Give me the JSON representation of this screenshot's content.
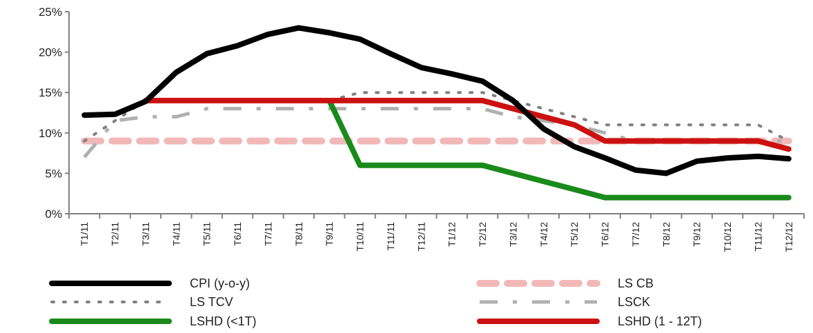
{
  "chart_data": {
    "type": "line",
    "title": "",
    "xlabel": "",
    "ylabel": "",
    "ylim": [
      0,
      25
    ],
    "yticks": [
      {
        "value": 0,
        "label": "0%"
      },
      {
        "value": 5,
        "label": "5%"
      },
      {
        "value": 10,
        "label": "10%"
      },
      {
        "value": 15,
        "label": "15%"
      },
      {
        "value": 20,
        "label": "20%"
      },
      {
        "value": 25,
        "label": "25%"
      }
    ],
    "categories": [
      "T1/11",
      "T2/11",
      "T3/11",
      "T4/11",
      "T5/11",
      "T6/11",
      "T7/11",
      "T8/11",
      "T9/11",
      "T10/11",
      "T11/11",
      "T12/11",
      "T1/12",
      "T2/12",
      "T3/12",
      "T4/12",
      "T5/12",
      "T6/12",
      "T7/12",
      "T8/12",
      "T9/12",
      "T10/12",
      "T11/12",
      "T12/12"
    ],
    "grid": false,
    "legend_position": "bottom",
    "series": [
      {
        "name": "CPI (y-o-y)",
        "style": "solid-thick",
        "color": "#000000",
        "values": [
          12.2,
          12.3,
          13.9,
          17.5,
          19.8,
          20.8,
          22.2,
          23.0,
          22.4,
          21.6,
          19.8,
          18.1,
          17.3,
          16.4,
          14.0,
          10.5,
          8.3,
          6.9,
          5.4,
          5.0,
          6.5,
          6.9,
          7.1,
          6.8
        ]
      },
      {
        "name": "LS TCV",
        "style": "dotted",
        "color": "#808080",
        "values": [
          9.0,
          11.5,
          14.0,
          14.0,
          14.0,
          14.0,
          14.0,
          14.0,
          14.0,
          15.0,
          15.0,
          15.0,
          15.0,
          15.0,
          14.0,
          13.0,
          12.0,
          11.0,
          11.0,
          11.0,
          11.0,
          11.0,
          11.0,
          9.0
        ]
      },
      {
        "name": "LS CB",
        "style": "dashed-thick",
        "color": "#f2b8b8",
        "values": [
          9.0,
          9.0,
          9.0,
          9.0,
          9.0,
          9.0,
          9.0,
          9.0,
          9.0,
          9.0,
          9.0,
          9.0,
          9.0,
          9.0,
          9.0,
          9.0,
          9.0,
          9.0,
          9.0,
          9.0,
          9.0,
          9.0,
          9.0,
          9.0
        ]
      },
      {
        "name": "LSCK",
        "style": "dash-dot",
        "color": "#b0b0b0",
        "values": [
          7.0,
          11.5,
          12.0,
          12.0,
          13.0,
          13.0,
          13.0,
          13.0,
          13.0,
          13.0,
          13.0,
          13.0,
          13.0,
          13.0,
          12.0,
          11.5,
          11.0,
          10.0,
          9.0,
          9.0,
          9.0,
          9.0,
          9.0,
          9.0
        ]
      },
      {
        "name": "LSHD (<1T)",
        "style": "solid-thick",
        "color": "#1a8a1a",
        "values": [
          null,
          null,
          null,
          null,
          null,
          null,
          null,
          null,
          14.0,
          6.0,
          6.0,
          6.0,
          6.0,
          6.0,
          5.0,
          4.0,
          3.0,
          2.0,
          2.0,
          2.0,
          2.0,
          2.0,
          2.0,
          2.0
        ]
      },
      {
        "name": "LSHD (1 - 12T)",
        "style": "solid-thick",
        "color": "#cc1111",
        "values": [
          null,
          null,
          14.0,
          14.0,
          14.0,
          14.0,
          14.0,
          14.0,
          14.0,
          14.0,
          14.0,
          14.0,
          14.0,
          14.0,
          13.0,
          12.0,
          11.0,
          9.0,
          9.0,
          9.0,
          9.0,
          9.0,
          9.0,
          8.0
        ]
      }
    ],
    "legend_layout": [
      {
        "series": "CPI (y-o-y)",
        "column": 0,
        "row": 0
      },
      {
        "series": "LS CB",
        "column": 1,
        "row": 0
      },
      {
        "series": "LS TCV",
        "column": 0,
        "row": 1
      },
      {
        "series": "LSCK",
        "column": 1,
        "row": 1
      },
      {
        "series": "LSHD (<1T)",
        "column": 0,
        "row": 2
      },
      {
        "series": "LSHD (1 - 12T)",
        "column": 1,
        "row": 2
      }
    ]
  }
}
